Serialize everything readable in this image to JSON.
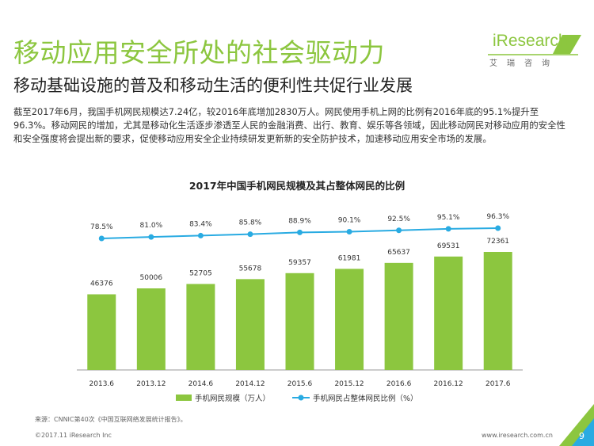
{
  "header": {
    "title": "移动应用安全所处的社会驱动力",
    "subtitle": "移动基础设施的普及和移动生活的便利性共促行业发展"
  },
  "logo": {
    "text": "iResearch",
    "sub": "艾瑞咨询"
  },
  "paragraph": "截至2017年6月，我国手机网民规模达7.24亿，较2016年底增加2830万人。网民使用手机上网的比例有2016年底的95.1%提升至96.3%。移动网民的增加，尤其是移动化生活逐步渗透至人民的金融消费、出行、教育、娱乐等各领域，因此移动网民对移动应用的安全性和安全强度将会提出新的要求，促使移动应用安全企业持续研发更新新的安全防护技术，加速移动应用安全市场的发展。",
  "chart_data": {
    "type": "bar",
    "title": "2017年中国手机网民规模及其占整体网民的比例",
    "categories": [
      "2013.6",
      "2013.12",
      "2014.6",
      "2014.12",
      "2015.6",
      "2015.12",
      "2016.6",
      "2016.12",
      "2017.6"
    ],
    "series": [
      {
        "name": "手机网民规模（万人）",
        "type": "bar",
        "values": [
          46376,
          50006,
          52705,
          55678,
          59357,
          61981,
          65637,
          69531,
          72361
        ]
      },
      {
        "name": "手机网民占整体网民比例（%）",
        "type": "line",
        "values": [
          78.5,
          81.0,
          83.4,
          85.8,
          88.9,
          90.1,
          92.5,
          95.1,
          96.3
        ]
      }
    ],
    "value_labels": [
      "46376",
      "50006",
      "52705",
      "55678",
      "59357",
      "61981",
      "65637",
      "69531",
      "72361"
    ],
    "pct_labels": [
      "78.5%",
      "81.0%",
      "83.4%",
      "85.8%",
      "88.9%",
      "90.1%",
      "92.5%",
      "95.1%",
      "96.3%"
    ],
    "legend_placement": "bottom",
    "grid": false,
    "colors": {
      "bar": "#8cc63f",
      "line": "#29abe2"
    }
  },
  "footer": {
    "source": "来源：CNNIC第40次《中国互联网络发展统计报告》。",
    "copyright": "©2017.11 iResearch Inc",
    "url": "www.iresearch.com.cn",
    "page": "9"
  }
}
